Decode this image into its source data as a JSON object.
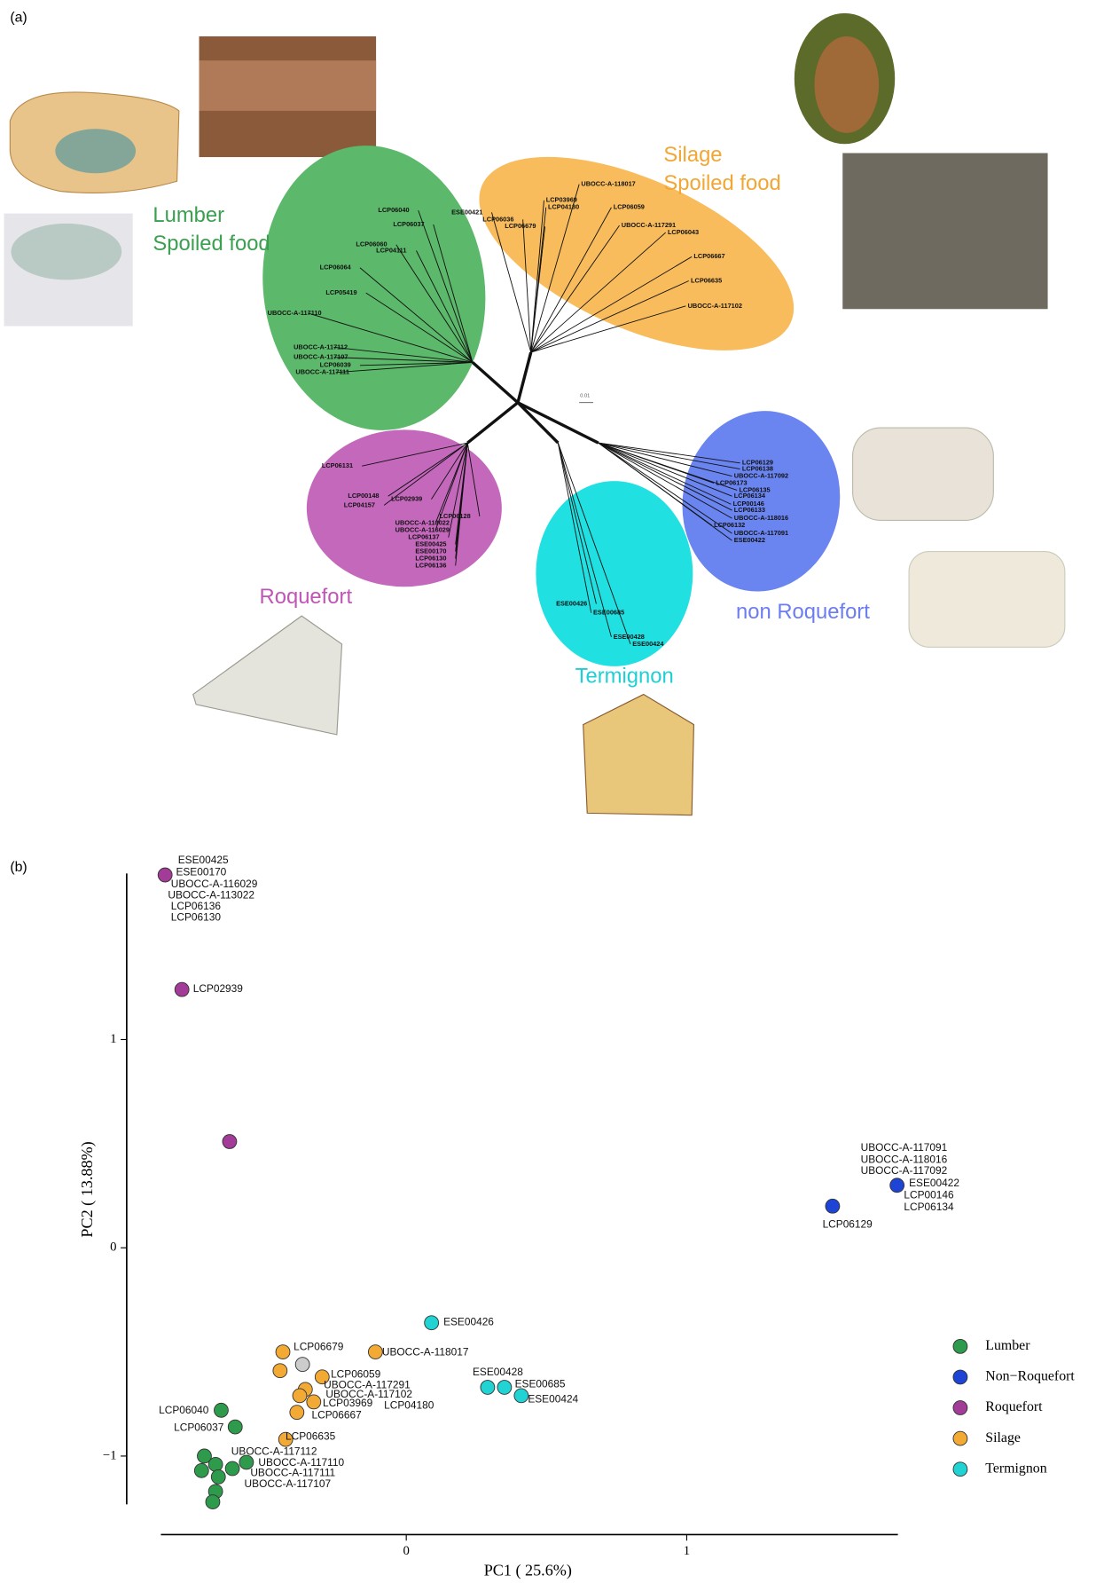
{
  "panel_a": {
    "label": "(a)",
    "scale_label": "0.01",
    "groups": [
      {
        "lines": [
          "Lumber",
          "Spoiled food"
        ],
        "color": "#3aa04f",
        "strains": [
          "LCP06040",
          "LCP06037",
          "LCP06060",
          "LCP04111",
          "LCP06064",
          "LCP05419",
          "UBOCC-A-117110",
          "UBOCC-A-117112",
          "UBOCC-A-117107",
          "LCP06039",
          "UBOCC-A-117111"
        ]
      },
      {
        "lines": [
          "Silage",
          "Spoiled food"
        ],
        "color": "#f2a634",
        "strains": [
          "ESE00421",
          "LCP06036",
          "LCP06679",
          "LCP03969",
          "LCP04180",
          "UBOCC-A-118017",
          "LCP06059",
          "UBOCC-A-117291",
          "LCP06043",
          "LCP06667",
          "LCP06635",
          "UBOCC-A-117102"
        ]
      },
      {
        "lines": [
          "Roquefort"
        ],
        "color": "#c055b5",
        "strains": [
          "LCP06131",
          "LCP00148",
          "LCP04157",
          "LCP02939",
          "LCP06128",
          "UBOCC-A-113022",
          "UBOCC-A-116029",
          "LCP06137",
          "ESE00425",
          "ESE00170",
          "LCP06130",
          "LCP06136"
        ]
      },
      {
        "lines": [
          "Termignon"
        ],
        "color": "#1fcfd4",
        "strains": [
          "ESE00426",
          "ESE00685",
          "ESE00428",
          "ESE00424"
        ]
      },
      {
        "lines": [
          "non Roquefort"
        ],
        "color": "#6b7df0",
        "strains": [
          "LCP06129",
          "LCP06138",
          "UBOCC-A-117092",
          "LCP06173",
          "LCP06135",
          "LCP06134",
          "LCP00146",
          "LCP06133",
          "UBOCC-A-118016",
          "LCP06132",
          "UBOCC-A-117091",
          "ESE00422"
        ]
      }
    ]
  },
  "chart_data": {
    "type": "scatter",
    "panel_label": "(b)",
    "x_label": "PC1 ( 25.6%)",
    "y_label": "PC2 ( 13.88%)",
    "xlim": [
      -0.875,
      1.753
    ],
    "ylim": [
      -1.232,
      1.797
    ],
    "xticks": [
      0,
      1
    ],
    "yticks": [
      {
        "value": -1,
        "label": "−1"
      },
      0,
      1
    ],
    "series": [
      {
        "name": "Lumber",
        "color": "#2e9b4c",
        "x": [
          -0.66,
          -0.61,
          -0.72,
          -0.68,
          -0.73,
          -0.62,
          -0.67,
          -0.57,
          -0.68,
          -0.69
        ],
        "values": [
          -0.78,
          -0.86,
          -1.0,
          -1.04,
          -1.07,
          -1.06,
          -1.1,
          -1.03,
          -1.17,
          -1.22
        ]
      },
      {
        "name": "Non−Roquefort",
        "color": "#1e44d6",
        "x": [
          1.52,
          1.75
        ],
        "values": [
          0.2,
          0.3
        ]
      },
      {
        "name": "Roquefort",
        "color": "#a23c98",
        "x": [
          -0.86,
          -0.8,
          -0.63
        ],
        "values": [
          1.79,
          1.24,
          0.51
        ]
      },
      {
        "name": "Silage",
        "color": "#f2aa35",
        "x": [
          -0.44,
          -0.45,
          -0.11,
          -0.3,
          -0.36,
          -0.38,
          -0.33,
          -0.39,
          -0.43
        ],
        "values": [
          -0.5,
          -0.59,
          -0.5,
          -0.62,
          -0.68,
          -0.71,
          -0.74,
          -0.79,
          -0.92
        ]
      },
      {
        "name": "Termignon",
        "color": "#22d3d3",
        "x": [
          0.09,
          0.29,
          0.35,
          0.41
        ],
        "values": [
          -0.36,
          -0.67,
          -0.67,
          -0.71
        ]
      },
      {
        "color": "#cccccc",
        "x": [
          -0.37
        ],
        "values": [
          -0.56
        ]
      }
    ],
    "annotations": [
      "ESE00425",
      "ESE00170",
      "UBOCC-A-116029",
      "UBOCC-A-113022",
      "LCP06136",
      "LCP06130",
      "LCP02939",
      "UBOCC-A-117091",
      "UBOCC-A-118016",
      "UBOCC-A-117092",
      "ESE00422",
      "LCP00146",
      "LCP06134",
      "LCP06129",
      "ESE00426",
      "UBOCC-A-118017",
      "LCP06679",
      "LCP06059",
      "UBOCC-A-117291",
      "UBOCC-A-117102",
      "LCP03969",
      "LCP06667",
      "LCP04180",
      "ESE00428",
      "ESE00685",
      "ESE00424",
      "LCP06040",
      "LCP06037",
      "LCP06635",
      "UBOCC-A-117112",
      "UBOCC-A-117110",
      "UBOCC-A-117111",
      "UBOCC-A-117107"
    ]
  }
}
